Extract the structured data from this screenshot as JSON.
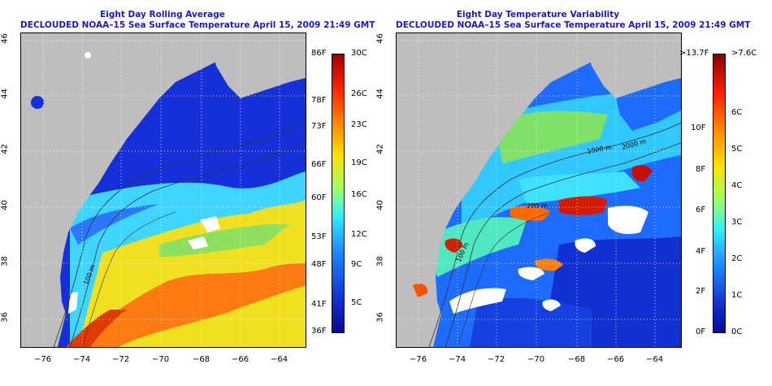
{
  "left_panel": {
    "title_line1": "Eight Day Rolling Average",
    "title_line2": "DECLOUDED NOAA–15 Sea Surface Temperature April 15, 2009 21:49 GMT",
    "colorbar_f": [
      "86F",
      "78F",
      "73F",
      "66F",
      "60F",
      "53F",
      "48F",
      "41F",
      "36F"
    ],
    "colorbar_c": [
      "30C",
      "26C",
      "23C",
      "19C",
      "16C",
      "12C",
      "9C",
      "5C"
    ],
    "contour_label": "100 m"
  },
  "right_panel": {
    "title_line1": "Eight Day Temperature Variability",
    "title_line2": "DECLOUDED NOAA–15 Sea Surface Temperature April 15, 2009 21:49 GMT",
    "colorbar_f": [
      ">13.7F",
      "10F",
      "8F",
      "6F",
      "4F",
      "2F",
      "0F"
    ],
    "colorbar_c": [
      ">7.6C",
      "6C",
      "5C",
      "4C",
      "3C",
      "2C",
      "1C",
      "0C"
    ],
    "contour_labels": [
      "100 m",
      "1000 m",
      "2000 m",
      "200 m"
    ]
  },
  "axes": {
    "x_ticks": [
      "−76",
      "−74",
      "−72",
      "−70",
      "−68",
      "−66",
      "−64"
    ],
    "y_ticks": [
      "46",
      "44",
      "42",
      "40",
      "38",
      "36"
    ]
  },
  "colors": {
    "land": "#bebebe",
    "title": "#1a1acc"
  }
}
